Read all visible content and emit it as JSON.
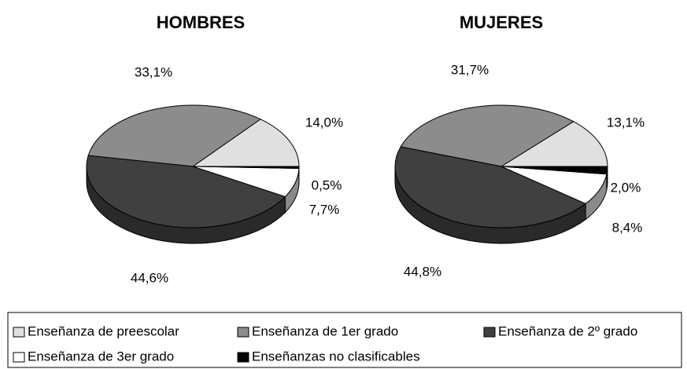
{
  "chart_data": [
    {
      "type": "pie",
      "title": "HOMBRES",
      "categories": [
        "Enseñanza de preescolar",
        "Enseñanza de 1er grado",
        "Enseñanza de 2º grado",
        "Enseñanza de 3er grado",
        "Enseñanzas no clasificables"
      ],
      "values": [
        14.0,
        33.1,
        44.6,
        7.7,
        0.5
      ],
      "value_labels": [
        "14,0%",
        "33,1%",
        "44,6%",
        "7,7%",
        "0,5%"
      ],
      "colors": [
        "#e0e0e0",
        "#8c8c8c",
        "#404040",
        "#ffffff",
        "#000000"
      ]
    },
    {
      "type": "pie",
      "title": "MUJERES",
      "categories": [
        "Enseñanza de preescolar",
        "Enseñanza de 1er grado",
        "Enseñanza de 2º grado",
        "Enseñanza de 3er grado",
        "Enseñanzas no clasificables"
      ],
      "values": [
        13.1,
        31.7,
        44.8,
        8.4,
        2.0
      ],
      "value_labels": [
        "13,1%",
        "31,7%",
        "44,8%",
        "8,4%",
        "2,0%"
      ],
      "colors": [
        "#e0e0e0",
        "#8c8c8c",
        "#404040",
        "#ffffff",
        "#000000"
      ]
    }
  ]
}
